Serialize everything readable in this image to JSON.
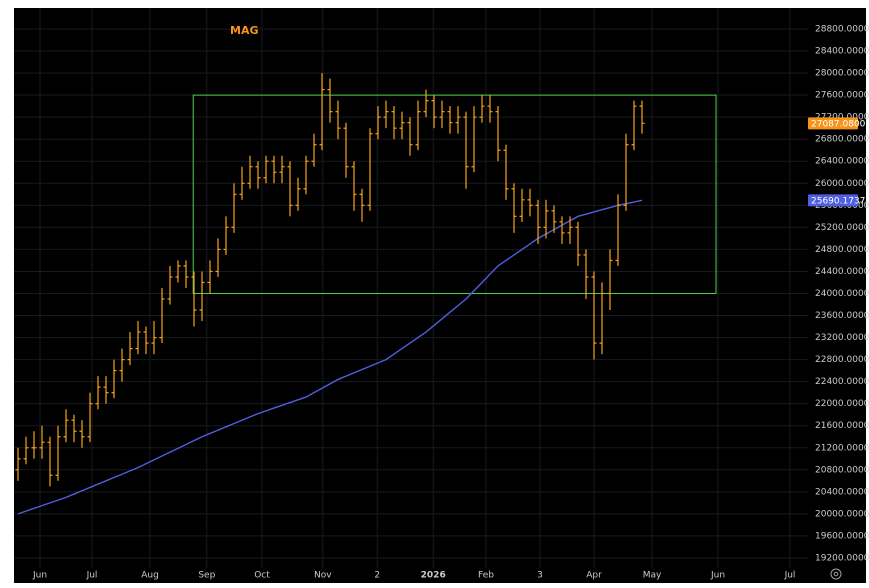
{
  "chart_data": {
    "type": "ohlc",
    "title": "MAG",
    "title_color": "#f7931a",
    "grid": true,
    "xlim": [
      -0.5,
      98.75
    ],
    "ylim": [
      19018,
      29181
    ],
    "xticks": [
      {
        "value": 2.75,
        "label": "Jun"
      },
      {
        "value": 9.25,
        "label": "Jul"
      },
      {
        "value": 16.5,
        "label": "Aug"
      },
      {
        "value": 23.6,
        "label": "Sep"
      },
      {
        "value": 30.5,
        "label": "Oct"
      },
      {
        "value": 38.1,
        "label": "Nov"
      },
      {
        "value": 44.9,
        "label": "2"
      },
      {
        "value": 51.9,
        "label": "2026",
        "bold": true
      },
      {
        "value": 58.5,
        "label": "Feb"
      },
      {
        "value": 65.25,
        "label": "3"
      },
      {
        "value": 72,
        "label": "Apr"
      },
      {
        "value": 79.25,
        "label": "May"
      },
      {
        "value": 87.5,
        "label": "Jun"
      },
      {
        "value": 96.5,
        "label": "Jul"
      }
    ],
    "yticks": [
      {
        "value": 19200,
        "label": "19200.0000"
      },
      {
        "value": 19600,
        "label": "19600.0000"
      },
      {
        "value": 20000,
        "label": "20000.0000"
      },
      {
        "value": 20400,
        "label": "20400.0000"
      },
      {
        "value": 20800,
        "label": "20800.0000"
      },
      {
        "value": 21200,
        "label": "21200.0000"
      },
      {
        "value": 21600,
        "label": "21600.0000"
      },
      {
        "value": 22000,
        "label": "22000.0000"
      },
      {
        "value": 22400,
        "label": "22400.0000"
      },
      {
        "value": 22800,
        "label": "22800.0000"
      },
      {
        "value": 23200,
        "label": "23200.0000"
      },
      {
        "value": 23600,
        "label": "23600.0000"
      },
      {
        "value": 24000,
        "label": "24000.0000"
      },
      {
        "value": 24400,
        "label": "24400.0000"
      },
      {
        "value": 24800,
        "label": "24800.0000"
      },
      {
        "value": 25200,
        "label": "25200.0000"
      },
      {
        "value": 25600,
        "label": "25600.0000"
      },
      {
        "value": 26000,
        "label": "26000.0000"
      },
      {
        "value": 26400,
        "label": "26400.0000"
      },
      {
        "value": 26800,
        "label": "26800.0000"
      },
      {
        "value": 27200,
        "label": "27200.0000"
      },
      {
        "value": 27600,
        "label": "27600.0000"
      },
      {
        "value": 28000,
        "label": "28000.0000"
      },
      {
        "value": 28400,
        "label": "28400.0000"
      },
      {
        "value": 28800,
        "label": "28800.0000"
      }
    ],
    "ohlc": {
      "color": "#f7a21b",
      "open": [
        20800,
        21000,
        21200,
        21200,
        21300,
        20700,
        21400,
        21700,
        21500,
        21400,
        22000,
        22300,
        22200,
        22600,
        22800,
        23000,
        23300,
        23100,
        23200,
        23900,
        24300,
        24500,
        24300,
        23700,
        24200,
        24400,
        24800,
        25200,
        25800,
        26000,
        26300,
        26100,
        26400,
        26200,
        26300,
        25600,
        25900,
        26400,
        26700,
        27700,
        27300,
        27000,
        26300,
        25800,
        25600,
        26900,
        27200,
        27300,
        27000,
        27100,
        26700,
        27300,
        27500,
        27200,
        27300,
        27100,
        27200,
        26300,
        27200,
        27400,
        27300,
        26600,
        25900,
        25400,
        25700,
        25600,
        25200,
        25500,
        25300,
        25100,
        25200,
        24700,
        24300,
        23100,
        24000,
        24600,
        25600,
        26700,
        27400
      ],
      "high": [
        21200,
        21400,
        21500,
        21600,
        21400,
        21600,
        21900,
        21800,
        21700,
        22200,
        22500,
        22500,
        22800,
        23000,
        23300,
        23500,
        23400,
        23500,
        24100,
        24500,
        24600,
        24600,
        24400,
        24400,
        24600,
        25000,
        25400,
        26000,
        26300,
        26500,
        26400,
        26500,
        26500,
        26500,
        26400,
        26100,
        26500,
        26900,
        28000,
        27900,
        27500,
        27100,
        26400,
        25900,
        27000,
        27400,
        27500,
        27400,
        27300,
        27200,
        27500,
        27700,
        27600,
        27500,
        27400,
        27400,
        27300,
        27400,
        27600,
        27600,
        27400,
        26700,
        26000,
        25900,
        25900,
        25700,
        25700,
        25600,
        25400,
        25400,
        25300,
        24800,
        24400,
        24200,
        24800,
        25800,
        26900,
        27500,
        27500
      ],
      "low": [
        20600,
        20900,
        21000,
        21000,
        20500,
        20600,
        21300,
        21300,
        21200,
        21300,
        21900,
        22000,
        22100,
        22400,
        22700,
        22900,
        22900,
        22900,
        23100,
        23800,
        24200,
        24100,
        23400,
        23500,
        24000,
        24300,
        24700,
        25100,
        25700,
        25900,
        25900,
        26000,
        26000,
        26000,
        25400,
        25500,
        25800,
        26300,
        26600,
        27100,
        26800,
        26100,
        25500,
        25300,
        25500,
        26800,
        27000,
        26800,
        26800,
        26500,
        26600,
        27200,
        27000,
        27000,
        26900,
        26900,
        25900,
        26200,
        27100,
        27100,
        26400,
        25700,
        25100,
        25300,
        25400,
        24900,
        25000,
        25100,
        24900,
        24900,
        24500,
        23900,
        22800,
        22900,
        23700,
        24500,
        25500,
        26600,
        26900
      ],
      "close": [
        21000,
        21200,
        21200,
        21300,
        20700,
        21400,
        21700,
        21500,
        21400,
        22000,
        22300,
        22200,
        22600,
        22800,
        23000,
        23300,
        23100,
        23200,
        23900,
        24300,
        24500,
        24300,
        23700,
        24200,
        24400,
        24800,
        25200,
        25800,
        26000,
        26300,
        26100,
        26400,
        26200,
        26300,
        25600,
        25900,
        26400,
        26700,
        27700,
        27300,
        27000,
        26300,
        25800,
        25600,
        26900,
        27200,
        27300,
        27000,
        27100,
        26700,
        27300,
        27500,
        27200,
        27300,
        27100,
        27200,
        26300,
        27200,
        27400,
        27300,
        26600,
        25900,
        25400,
        25700,
        25600,
        25200,
        25500,
        25300,
        25100,
        25200,
        24700,
        24300,
        23100,
        24000,
        24600,
        25600,
        26700,
        27400,
        27087.08
      ]
    },
    "ma": {
      "color": "#4f5fe0",
      "values": [
        20000,
        20050,
        20100,
        20150,
        20200,
        20250,
        20300,
        20360,
        20420,
        20480,
        20540,
        20600,
        20660,
        20720,
        20780,
        20840,
        20910,
        20980,
        21050,
        21120,
        21190,
        21260,
        21330,
        21400,
        21460,
        21520,
        21580,
        21640,
        21700,
        21760,
        21820,
        21870,
        21920,
        21970,
        22020,
        22070,
        22120,
        22200,
        22280,
        22360,
        22440,
        22500,
        22560,
        22620,
        22680,
        22740,
        22800,
        22900,
        23000,
        23100,
        23200,
        23300,
        23420,
        23540,
        23660,
        23780,
        23900,
        24050,
        24200,
        24350,
        24500,
        24600,
        24700,
        24800,
        24900,
        25000,
        25080,
        25160,
        25240,
        25320,
        25400,
        25440,
        25480,
        25520,
        25560,
        25600,
        25630,
        25660,
        25690.1737
      ]
    },
    "box": {
      "color": "#4cd44c",
      "x": [
        21.9,
        87.25
      ],
      "y": [
        24000,
        27600
      ]
    },
    "price_tags": [
      {
        "value": 27087.08,
        "label": "27087.0800",
        "color": "#f7931a"
      },
      {
        "value": 25690.1737,
        "label": "25690.1737",
        "color": "#4f5fe0"
      }
    ]
  }
}
